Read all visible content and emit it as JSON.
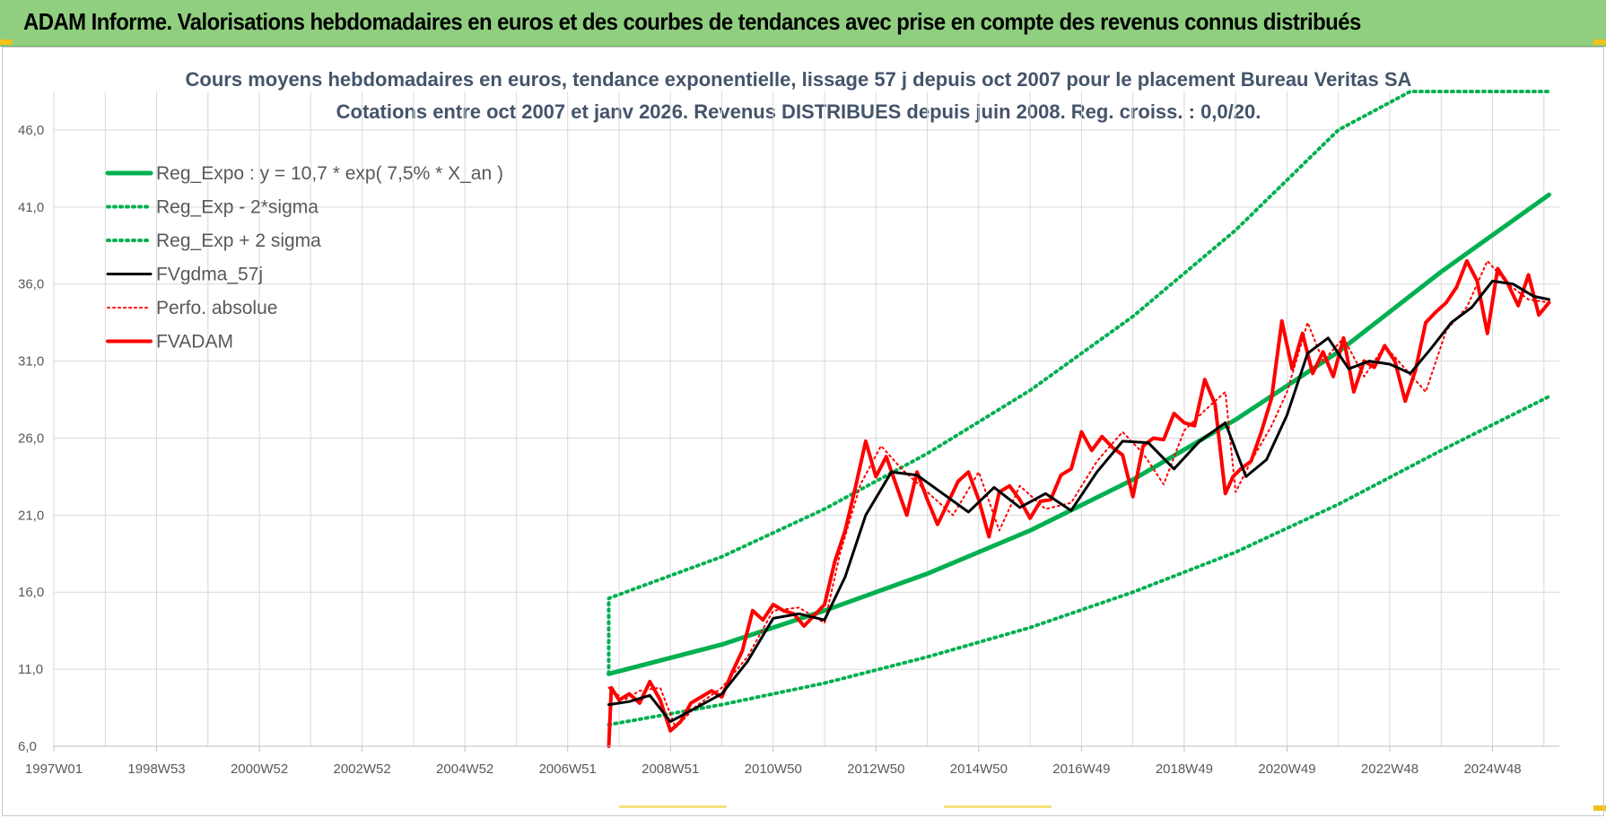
{
  "banner": {
    "title": "ADAM Informe. Valorisations hebdomadaires en euros et des courbes de tendances avec prise en compte des revenus connus distribués"
  },
  "colors": {
    "banner_bg": "#8fcf7f",
    "reg_expo": "#00b050",
    "fvgdma": "#000000",
    "fvadam": "#ff0000",
    "grid": "#d9d9d9",
    "title": "#44546a"
  },
  "chart_data": {
    "type": "line",
    "title": "Cours moyens hebdomadaires en euros, tendance exponentielle, lissage 57 j depuis oct 2007 pour le placement Bureau Veritas SA",
    "subtitle": "Cotations entre oct 2007 et janv 2026. Revenus DISTRIBUES depuis juin 2008. Reg. croiss. : 0,0/20.",
    "xlabel": "",
    "ylabel": "",
    "ylim": [
      6.0,
      48.5
    ],
    "xlim": [
      1997.0,
      2026.3
    ],
    "grid": true,
    "legend_position": "top-left",
    "y_ticks": [
      "6,0",
      "11,0",
      "16,0",
      "21,0",
      "26,0",
      "31,0",
      "36,0",
      "41,0",
      "46,0"
    ],
    "x_ticks": [
      "1997W01",
      "1998W53",
      "2000W52",
      "2002W52",
      "2004W52",
      "2006W51",
      "2008W51",
      "2010W50",
      "2012W50",
      "2014W50",
      "2016W49",
      "2018W49",
      "2020W49",
      "2022W48",
      "2024W48"
    ],
    "x_tick_years": [
      1997.0,
      1999.0,
      2001.0,
      2003.0,
      2005.0,
      2007.0,
      2009.0,
      2011.0,
      2013.0,
      2015.0,
      2017.0,
      2019.0,
      2021.0,
      2023.0,
      2025.0
    ],
    "legend": [
      "Reg_Expo : y = 10,7 * exp( 7,5% *  X_an )",
      "Reg_Exp - 2*sigma",
      "Reg_Exp + 2 sigma",
      "FVgdma_57j",
      "Perfo. absolue",
      "FVADAM"
    ],
    "series": [
      {
        "name": "Reg_Expo : y = 10,7 * exp( 7,5% *  X_an )",
        "style": "solid-green-thick",
        "x": [
          2007.8,
          2010.0,
          2012.0,
          2014.0,
          2016.0,
          2018.0,
          2020.0,
          2022.0,
          2024.0,
          2026.1
        ],
        "y": [
          10.7,
          12.6,
          14.8,
          17.2,
          20.0,
          23.3,
          27.2,
          31.6,
          36.8,
          41.8
        ]
      },
      {
        "name": "Reg_Exp - 2*sigma",
        "style": "dotted-green",
        "x": [
          2007.8,
          2010.0,
          2012.0,
          2014.0,
          2016.0,
          2018.0,
          2020.0,
          2022.0,
          2024.0,
          2026.1
        ],
        "y": [
          7.4,
          8.7,
          10.1,
          11.8,
          13.7,
          16.0,
          18.6,
          21.7,
          25.2,
          28.7
        ]
      },
      {
        "name": "Reg_Exp + 2 sigma",
        "style": "dotted-green",
        "x": [
          2007.8,
          2007.8,
          2010.0,
          2012.0,
          2014.0,
          2016.0,
          2018.0,
          2020.0,
          2022.0,
          2023.4,
          2026.1
        ],
        "y": [
          10.7,
          15.6,
          18.3,
          21.4,
          25.0,
          29.1,
          33.9,
          39.5,
          46.0,
          48.5,
          48.5
        ]
      },
      {
        "name": "FVgdma_57j",
        "style": "solid-black",
        "x": [
          2007.8,
          2008.2,
          2008.6,
          2009.0,
          2009.5,
          2010.0,
          2010.5,
          2011.0,
          2011.5,
          2012.0,
          2012.4,
          2012.8,
          2013.3,
          2013.8,
          2014.3,
          2014.8,
          2015.3,
          2015.8,
          2016.3,
          2016.8,
          2017.3,
          2017.8,
          2018.3,
          2018.8,
          2019.3,
          2019.8,
          2020.2,
          2020.6,
          2021.0,
          2021.4,
          2021.8,
          2022.2,
          2022.6,
          2023.0,
          2023.4,
          2023.8,
          2024.2,
          2024.6,
          2025.0,
          2025.4,
          2025.8,
          2026.1
        ],
        "y": [
          8.7,
          8.9,
          9.3,
          7.6,
          8.5,
          9.4,
          11.5,
          14.3,
          14.6,
          14.2,
          17.0,
          21.0,
          23.8,
          23.6,
          22.4,
          21.2,
          22.8,
          21.5,
          22.4,
          21.3,
          23.8,
          25.8,
          25.7,
          24.0,
          25.8,
          27.0,
          23.5,
          24.6,
          27.5,
          31.5,
          32.5,
          30.5,
          31.0,
          30.8,
          30.2,
          31.8,
          33.5,
          34.5,
          36.2,
          36.0,
          35.2,
          35.0
        ]
      },
      {
        "name": "Perfo. absolue",
        "style": "dotted-red",
        "x": [
          2007.8,
          2008.1,
          2008.4,
          2008.8,
          2009.1,
          2009.5,
          2010.0,
          2010.5,
          2011.0,
          2011.5,
          2012.0,
          2012.3,
          2012.7,
          2013.1,
          2013.5,
          2014.0,
          2014.5,
          2015.0,
          2015.4,
          2015.8,
          2016.3,
          2016.8,
          2017.3,
          2017.8,
          2018.2,
          2018.6,
          2019.0,
          2019.4,
          2019.8,
          2020.0,
          2020.3,
          2020.7,
          2021.0,
          2021.4,
          2021.7,
          2022.1,
          2022.5,
          2022.9,
          2023.3,
          2023.7,
          2024.1,
          2024.5,
          2024.9,
          2025.3,
          2025.7,
          2026.1
        ],
        "y": [
          9.8,
          9.0,
          9.6,
          9.8,
          7.2,
          8.6,
          9.8,
          11.8,
          14.8,
          15.0,
          14.0,
          18.5,
          23.0,
          25.5,
          24.0,
          22.5,
          21.0,
          23.8,
          20.0,
          22.9,
          21.4,
          21.8,
          24.5,
          26.4,
          25.0,
          23.0,
          26.5,
          27.8,
          29.0,
          22.5,
          24.5,
          26.8,
          29.0,
          33.5,
          31.0,
          32.5,
          30.0,
          32.0,
          30.5,
          29.0,
          33.0,
          34.5,
          37.5,
          36.0,
          35.0,
          34.8
        ]
      },
      {
        "name": "FVADAM",
        "style": "solid-red-thick",
        "x": [
          2007.8,
          2007.85,
          2008.0,
          2008.2,
          2008.4,
          2008.6,
          2008.8,
          2009.0,
          2009.2,
          2009.4,
          2009.6,
          2009.8,
          2010.0,
          2010.2,
          2010.4,
          2010.6,
          2010.8,
          2011.0,
          2011.2,
          2011.4,
          2011.6,
          2011.8,
          2012.0,
          2012.2,
          2012.4,
          2012.6,
          2012.8,
          2013.0,
          2013.2,
          2013.4,
          2013.6,
          2013.8,
          2014.0,
          2014.2,
          2014.4,
          2014.6,
          2014.8,
          2015.0,
          2015.2,
          2015.4,
          2015.6,
          2015.8,
          2016.0,
          2016.2,
          2016.4,
          2016.6,
          2016.8,
          2017.0,
          2017.2,
          2017.4,
          2017.6,
          2017.8,
          2018.0,
          2018.2,
          2018.4,
          2018.6,
          2018.8,
          2019.0,
          2019.2,
          2019.4,
          2019.6,
          2019.8,
          2019.95,
          2020.1,
          2020.3,
          2020.5,
          2020.7,
          2020.9,
          2021.1,
          2021.3,
          2021.5,
          2021.7,
          2021.9,
          2022.1,
          2022.3,
          2022.5,
          2022.7,
          2022.9,
          2023.1,
          2023.3,
          2023.5,
          2023.7,
          2023.9,
          2024.1,
          2024.3,
          2024.5,
          2024.7,
          2024.9,
          2025.1,
          2025.3,
          2025.5,
          2025.7,
          2025.9,
          2026.1
        ],
        "y": [
          6.0,
          9.8,
          9.0,
          9.4,
          8.8,
          10.2,
          9.0,
          7.0,
          7.6,
          8.8,
          9.2,
          9.6,
          9.2,
          10.8,
          12.2,
          14.8,
          14.2,
          15.2,
          14.8,
          14.6,
          13.8,
          14.5,
          15.2,
          18.0,
          20.0,
          22.8,
          25.8,
          23.5,
          24.8,
          22.9,
          21.0,
          23.8,
          22.0,
          20.4,
          21.8,
          23.2,
          23.8,
          22.0,
          19.6,
          22.5,
          22.9,
          22.0,
          20.8,
          21.9,
          22.0,
          23.6,
          24.0,
          26.4,
          25.2,
          26.1,
          25.4,
          24.9,
          22.2,
          25.5,
          26.0,
          25.9,
          27.6,
          27.0,
          26.8,
          29.8,
          28.2,
          22.4,
          23.5,
          24.0,
          24.5,
          26.4,
          28.6,
          33.6,
          30.5,
          32.8,
          30.2,
          31.6,
          30.0,
          32.5,
          29.0,
          31.0,
          30.6,
          32.0,
          31.0,
          28.4,
          30.4,
          33.5,
          34.2,
          34.8,
          35.8,
          37.5,
          36.2,
          32.8,
          37.0,
          36.0,
          34.6,
          36.6,
          34.0,
          34.8
        ]
      }
    ]
  }
}
